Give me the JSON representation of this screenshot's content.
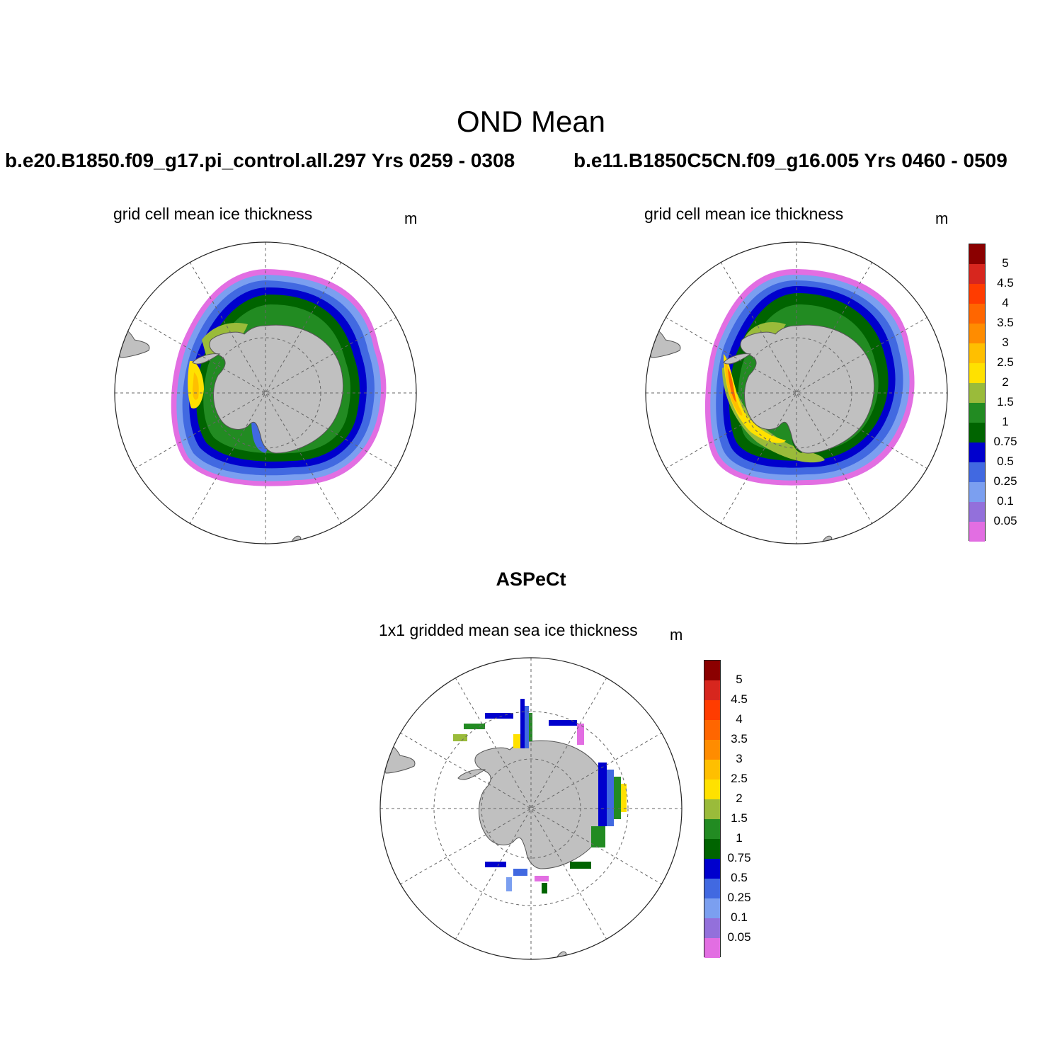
{
  "header": {
    "title": "OND Mean",
    "run_left": "b.e20.B1850.f09_g17.pi_control.all.297  Yrs 0259 - 0308",
    "run_right": "b.e11.B1850C5CN.f09_g16.005  Yrs 0460 - 0509"
  },
  "panels": {
    "left": {
      "label": "grid cell mean ice thickness",
      "units": "m"
    },
    "right": {
      "label": "grid cell mean ice thickness",
      "units": "m"
    },
    "obs": {
      "heading": "ASPeCt",
      "label": "1x1 gridded mean sea ice thickness",
      "units": "m"
    }
  },
  "colorbar": {
    "labels": [
      "5",
      "4.5",
      "4",
      "3.5",
      "3",
      "2.5",
      "2",
      "1.5",
      "1",
      "0.75",
      "0.5",
      "0.25",
      "0.1",
      "0.05"
    ],
    "colors": [
      "#8b0000",
      "#d7261e",
      "#ff3c00",
      "#ff6600",
      "#ff8c00",
      "#ffbf00",
      "#ffe100",
      "#9abb3a",
      "#228b22",
      "#006400",
      "#0000cd",
      "#4169e1",
      "#7b9ff0",
      "#9370db",
      "#e26ee2"
    ]
  },
  "map_colors": {
    "land": "#c0c0c0",
    "coast": "#555555",
    "grid": "#666666"
  }
}
